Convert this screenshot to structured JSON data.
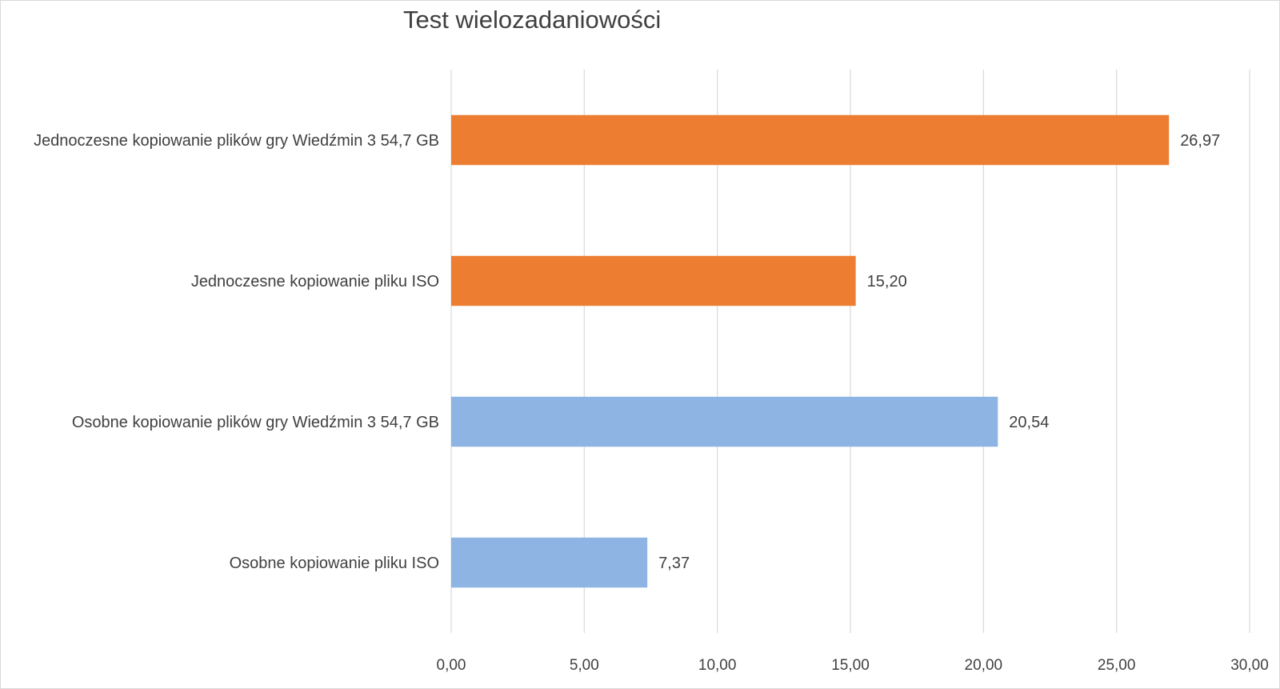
{
  "chart_data": {
    "type": "bar",
    "orientation": "horizontal",
    "title": "Test wielozadaniowości",
    "xlabel": "",
    "ylabel": "",
    "xlim": [
      0,
      30
    ],
    "tick_step": 5,
    "tick_labels": [
      "0,00",
      "5,00",
      "10,00",
      "15,00",
      "20,00",
      "25,00",
      "30,00"
    ],
    "grid": true,
    "legend": "none",
    "bars": [
      {
        "category": "Jednoczesne kopiowanie plików gry Wiedźmin 3 54,7 GB",
        "value": 26.97,
        "label": "26,97",
        "color": "#ED7D31"
      },
      {
        "category": "Jednoczesne kopiowanie pliku ISO",
        "value": 15.2,
        "label": "15,20",
        "color": "#ED7D31"
      },
      {
        "category": "Osobne kopiowanie plików gry Wiedźmin 3 54,7 GB",
        "value": 20.54,
        "label": "20,54",
        "color": "#8EB4E3"
      },
      {
        "category": "Osobne kopiowanie pliku ISO",
        "value": 7.37,
        "label": "7,37",
        "color": "#8EB4E3"
      }
    ]
  }
}
